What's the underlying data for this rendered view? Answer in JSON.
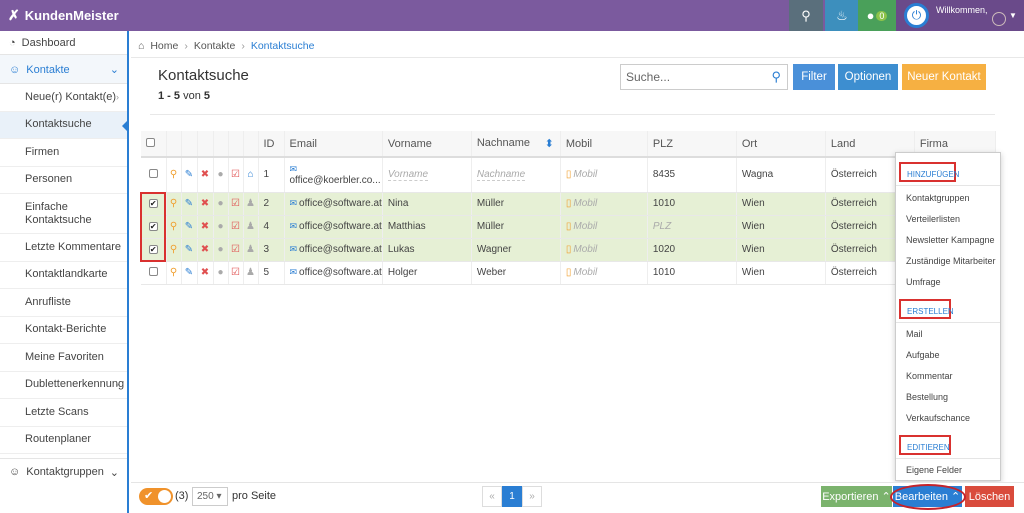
{
  "app": {
    "brand": "KundenMeister",
    "welcome": "Willkommen,",
    "chat_count": "0"
  },
  "sidebar": {
    "top": "Dashboard",
    "section": "Kontakte",
    "items": [
      {
        "label": "Neue(r) Kontakt(e)"
      },
      {
        "label": "Kontaktsuche"
      },
      {
        "label": "Firmen"
      },
      {
        "label": "Personen"
      },
      {
        "label": "Einfache Kontaktsuche"
      },
      {
        "label": "Letzte Kommentare"
      },
      {
        "label": "Kontaktlandkarte"
      },
      {
        "label": "Anrufliste"
      },
      {
        "label": "Kontakt-Berichte"
      },
      {
        "label": "Meine Favoriten"
      },
      {
        "label": "Dublettenerkennung"
      },
      {
        "label": "Letzte Scans"
      },
      {
        "label": "Routenplaner"
      }
    ],
    "bottom": "Kontaktgruppen"
  },
  "breadcrumb": {
    "home": "Home",
    "parent": "Kontakte",
    "current": "Kontaktsuche"
  },
  "page": {
    "title": "Kontaktsuche",
    "range": "1 - 5",
    "von": "von",
    "total": "5"
  },
  "search": {
    "placeholder": "Suche..."
  },
  "buttons": {
    "filter": "Filter",
    "optionen": "Optionen",
    "neu": "Neuer Kontakt"
  },
  "table": {
    "headers": {
      "id": "ID",
      "email": "Email",
      "vorname": "Vorname",
      "nachname": "Nachname",
      "mobil": "Mobil",
      "plz": "PLZ",
      "ort": "Ort",
      "land": "Land",
      "firma": "Firma"
    },
    "rows": [
      {
        "id": "1",
        "email": "office@koerbler.co...",
        "vorname": "Vorname",
        "nachname": "Nachname",
        "mobil": "Mobil",
        "plz": "8435",
        "ort": "Wagna",
        "land": "Österreich"
      },
      {
        "id": "2",
        "email": "office@software.at",
        "vorname": "Nina",
        "nachname": "Müller",
        "mobil": "Mobil",
        "plz": "1010",
        "ort": "Wien",
        "land": "Österreich"
      },
      {
        "id": "4",
        "email": "office@software.at",
        "vorname": "Matthias",
        "nachname": "Müller",
        "mobil": "Mobil",
        "plz": "PLZ",
        "ort": "Wien",
        "land": "Österreich"
      },
      {
        "id": "3",
        "email": "office@software.at",
        "vorname": "Lukas",
        "nachname": "Wagner",
        "mobil": "Mobil",
        "plz": "1020",
        "ort": "Wien",
        "land": "Österreich"
      },
      {
        "id": "5",
        "email": "office@software.at",
        "vorname": "Holger",
        "nachname": "Weber",
        "mobil": "Mobil",
        "plz": "1010",
        "ort": "Wien",
        "land": "Österreich"
      }
    ]
  },
  "menu": {
    "hinzufuegen": "HINZUFÜGEN",
    "items_a": [
      "Kontaktgruppen",
      "Verteilerlisten",
      "Newsletter Kampagne",
      "Zuständige Mitarbeiter",
      "Umfrage"
    ],
    "erstellen": "ERSTELLEN",
    "items_b": [
      "Mail",
      "Aufgabe",
      "Kommentar",
      "Bestellung",
      "Verkaufschance"
    ],
    "editieren": "EDITIEREN",
    "items_c": [
      "Eigene Felder"
    ]
  },
  "footer": {
    "selected": "(3)",
    "per_page": "250",
    "per_page_label": "pro Seite",
    "page": "1",
    "export": "Exportieren",
    "edit": "Bearbeiten",
    "delete": "Löschen"
  }
}
